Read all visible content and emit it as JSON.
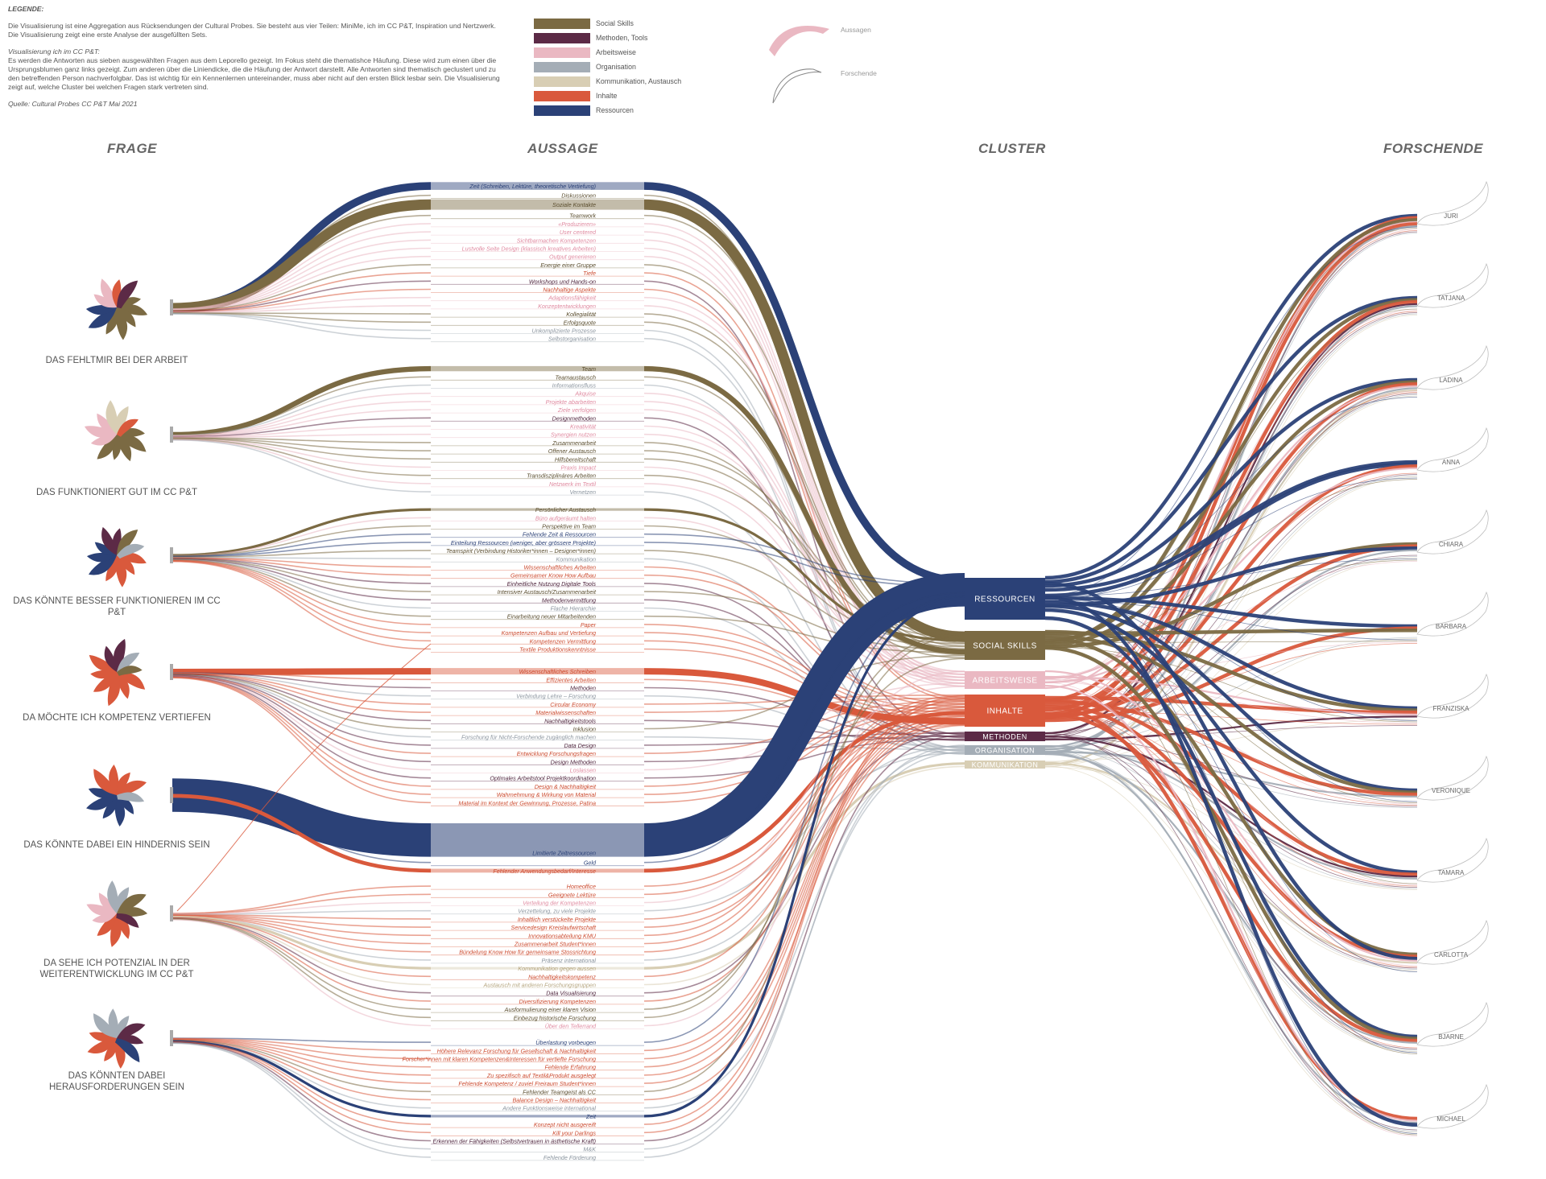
{
  "legend": {
    "title": "LEGENDE:",
    "para1": "Die Visualisierung ist eine Aggregation aus Rücksendungen der Cultural Probes. Sie besteht aus vier Teilen: MiniMe, ich im CC P&T, Inspiration und Nertzwerk. Die Visualisierung zeigt eine erste Analyse der ausgefüllten Sets.",
    "subtitle": "Visualisierung ich im CC P&T:",
    "para2": "Es werden die Antworten aus sieben ausgewählten Fragen aus dem Leporello gezeigt. Im Fokus steht die thematishce Häufung. Diese wird zum einen über die Ursprungsblumen ganz links gezeigt. Zum anderen über die Liniendicke, die die Häufung der Antwort darstellt. Alle Antworten sind thematisch geclustert und zu den betreffenden Person nachverfolgbar. Das ist wichtig für ein Kennenlernen untereinander, muss aber nicht auf den ersten Blick lesbar sein. Die Visualisierung zeigt auf, welche Cluster bei welchen Fragen stark vertreten sind.",
    "source": "Quelle: Cultural Probes CC P&T Mai 2021"
  },
  "colors": {
    "Social Skills": "#7b6a43",
    "Methoden, Tools": "#5c2a46",
    "Arbeitsweise": "#eab8c2",
    "Organisation": "#a4adb6",
    "Kommunikation, Austausch": "#d8ceb4",
    "Inhalte": "#d9593c",
    "Ressourcen": "#2b4177"
  },
  "cluster_legend": [
    "Social Skills",
    "Methoden, Tools",
    "Arbeitsweise",
    "Organisation",
    "Kommunikation, Austausch",
    "Inhalte",
    "Ressourcen"
  ],
  "symbol_legend": {
    "aussagen": "Aussagen",
    "forschende": "Forschende"
  },
  "headers": {
    "frage": "FRAGE",
    "aussage": "AUSSAGE",
    "cluster": "CLUSTER",
    "forschende": "FORSCHENDE"
  },
  "questions": [
    {
      "label": "DAS FEHLTMIR BEI DER ARBEIT",
      "mix": [
        [
          "Social Skills",
          5
        ],
        [
          "Ressourcen",
          2
        ],
        [
          "Arbeitsweise",
          2
        ],
        [
          "Inhalte",
          1
        ],
        [
          "Methoden, Tools",
          1
        ]
      ]
    },
    {
      "label": "DAS FUNKTIONIERT GUT IM CC P&T",
      "mix": [
        [
          "Social Skills",
          5
        ],
        [
          "Arbeitsweise",
          3
        ],
        [
          "Kommunikation, Austausch",
          2
        ],
        [
          "Inhalte",
          1
        ]
      ]
    },
    {
      "label": "DAS KÖNNTE BESSER FUNKTIONIEREN IM CC P&T",
      "mix": [
        [
          "Inhalte",
          4
        ],
        [
          "Ressourcen",
          3
        ],
        [
          "Methoden, Tools",
          2
        ],
        [
          "Social Skills",
          1
        ],
        [
          "Organisation",
          1
        ]
      ]
    },
    {
      "label": "DA MÖCHTE ICH KOMPETENZ VERTIEFEN",
      "mix": [
        [
          "Inhalte",
          6
        ],
        [
          "Methoden, Tools",
          2
        ],
        [
          "Organisation",
          1
        ],
        [
          "Social Skills",
          1
        ]
      ]
    },
    {
      "label": "DAS KÖNNTE DABEI EIN HINDERNIS SEIN",
      "mix": [
        [
          "Ressourcen",
          5
        ],
        [
          "Inhalte",
          4
        ],
        [
          "Organisation",
          1
        ]
      ]
    },
    {
      "label": "DA SEHE ICH POTENZIAL IN DER WEITERENTWICKLUNG IM CC P&T",
      "mix": [
        [
          "Inhalte",
          3
        ],
        [
          "Arbeitsweise",
          3
        ],
        [
          "Organisation",
          2
        ],
        [
          "Social Skills",
          2
        ],
        [
          "Methoden, Tools",
          1
        ]
      ]
    },
    {
      "label": "DAS KÖNNTEN DABEI HERAUSFORDERUNGEN SEIN",
      "mix": [
        [
          "Inhalte",
          4
        ],
        [
          "Organisation",
          3
        ],
        [
          "Methoden, Tools",
          2
        ],
        [
          "Ressourcen",
          1
        ]
      ]
    }
  ],
  "clusters": [
    {
      "label": "RESSOURCEN",
      "key": "Ressourcen"
    },
    {
      "label": "SOCIAL SKILLS",
      "key": "Social Skills"
    },
    {
      "label": "ARBEITSWEISE",
      "key": "Arbeitsweise"
    },
    {
      "label": "INHALTE",
      "key": "Inhalte"
    },
    {
      "label": "METHODEN",
      "key": "Methoden, Tools"
    },
    {
      "label": "ORGANISATION",
      "key": "Organisation"
    },
    {
      "label": "KOMMUNIKATION",
      "key": "Kommunikation, Austausch"
    }
  ],
  "researchers": [
    "JURI",
    "TATJANA",
    "LADINA",
    "ANNA",
    "CHIARA",
    "BARBARA",
    "FRANZISKA",
    "VERONIQUE",
    "TAMARA",
    "CARLOTTA",
    "BJARNE",
    "MICHAEL"
  ],
  "statements": [
    {
      "t": "Zeit (Schreiben, Lektüre, theoretische Vertiefung)",
      "c": "Ressourcen",
      "w": 6,
      "q": 0
    },
    {
      "t": "Diskussionen",
      "c": "Social Skills",
      "w": 1,
      "q": 0
    },
    {
      "t": "Soziale Kontakte",
      "c": "Social Skills",
      "w": 8,
      "q": 0
    },
    {
      "t": "Teamwork",
      "c": "Social Skills",
      "w": 1,
      "q": 0
    },
    {
      "t": "«Produzieren»",
      "c": "Arbeitsweise",
      "w": 1,
      "q": 0
    },
    {
      "t": "User centered",
      "c": "Arbeitsweise",
      "w": 1,
      "q": 0
    },
    {
      "t": "Sichtbarmachen Kompetenzen",
      "c": "Arbeitsweise",
      "w": 1,
      "q": 0
    },
    {
      "t": "Lustvolle Seite Design (klassisch kreatives Arbeiten)",
      "c": "Arbeitsweise",
      "w": 1,
      "q": 0
    },
    {
      "t": "Output generieren",
      "c": "Arbeitsweise",
      "w": 1,
      "q": 0
    },
    {
      "t": "Energie einer Gruppe",
      "c": "Social Skills",
      "w": 1,
      "q": 0
    },
    {
      "t": "Tiefe",
      "c": "Inhalte",
      "w": 1,
      "q": 0
    },
    {
      "t": "Workshops und Hands-on",
      "c": "Methoden, Tools",
      "w": 1,
      "q": 0
    },
    {
      "t": "Nachhaltige Aspekte",
      "c": "Inhalte",
      "w": 1,
      "q": 0
    },
    {
      "t": "Adaptionsfähigkeit",
      "c": "Arbeitsweise",
      "w": 1,
      "q": 0
    },
    {
      "t": "Konzeptentwicklungen",
      "c": "Arbeitsweise",
      "w": 1,
      "q": 0
    },
    {
      "t": "Kollegialität",
      "c": "Social Skills",
      "w": 1,
      "q": 0
    },
    {
      "t": "Erfolgsquote",
      "c": "Social Skills",
      "w": 1,
      "q": 0
    },
    {
      "t": "Unkomplizierte Prozesse",
      "c": "Organisation",
      "w": 1,
      "q": 0
    },
    {
      "t": "Selbstorganisation",
      "c": "Organisation",
      "w": 1,
      "q": 0
    },
    {
      "t": "Team",
      "c": "Social Skills",
      "w": 4,
      "q": 1
    },
    {
      "t": "Teamaustausch",
      "c": "Social Skills",
      "w": 1,
      "q": 1
    },
    {
      "t": "Informationsfluss",
      "c": "Organisation",
      "w": 1,
      "q": 1
    },
    {
      "t": "Akquise",
      "c": "Arbeitsweise",
      "w": 1,
      "q": 1
    },
    {
      "t": "Projekte abarbeiten",
      "c": "Arbeitsweise",
      "w": 1,
      "q": 1
    },
    {
      "t": "Ziele verfolgen",
      "c": "Arbeitsweise",
      "w": 1,
      "q": 1
    },
    {
      "t": "Designmethoden",
      "c": "Methoden, Tools",
      "w": 1,
      "q": 1
    },
    {
      "t": "Kreativität",
      "c": "Arbeitsweise",
      "w": 1,
      "q": 1
    },
    {
      "t": "Synergien nutzen",
      "c": "Arbeitsweise",
      "w": 1,
      "q": 1
    },
    {
      "t": "Zusammenarbeit",
      "c": "Social Skills",
      "w": 1,
      "q": 1
    },
    {
      "t": "Offener Austausch",
      "c": "Social Skills",
      "w": 1,
      "q": 1
    },
    {
      "t": "Hilfsbereitschaft",
      "c": "Social Skills",
      "w": 1,
      "q": 1
    },
    {
      "t": "Praxis Impact",
      "c": "Arbeitsweise",
      "w": 1,
      "q": 1
    },
    {
      "t": "Transdisziplinäres Arbeiten",
      "c": "Social Skills",
      "w": 1,
      "q": 1
    },
    {
      "t": "Netzwerk im Textil",
      "c": "Arbeitsweise",
      "w": 1,
      "q": 1
    },
    {
      "t": "Vernetzen",
      "c": "Organisation",
      "w": 1,
      "q": 1
    },
    {
      "t": "Persönlicher Austausch",
      "c": "Social Skills",
      "w": 2,
      "q": 2
    },
    {
      "t": "Büro aufgeräumt halten",
      "c": "Arbeitsweise",
      "w": 1,
      "q": 2
    },
    {
      "t": "Perspektive im Team",
      "c": "Social Skills",
      "w": 1,
      "q": 2
    },
    {
      "t": "Fehlende Zeit & Ressourcen",
      "c": "Ressourcen",
      "w": 1,
      "q": 2
    },
    {
      "t": "Einteilung Ressourcen (weniger, aber grössere Projekte)",
      "c": "Ressourcen",
      "w": 1,
      "q": 2
    },
    {
      "t": "Teamspirit (Verbindung Historiker*innen – Designer*innen)",
      "c": "Social Skills",
      "w": 1,
      "q": 2
    },
    {
      "t": "Kommunikation",
      "c": "Organisation",
      "w": 1,
      "q": 2
    },
    {
      "t": "Wissenschaftliches Arbeiten",
      "c": "Inhalte",
      "w": 1,
      "q": 2
    },
    {
      "t": "Gemeinsamer Know How Aufbau",
      "c": "Inhalte",
      "w": 1,
      "q": 2
    },
    {
      "t": "Einheitliche Nutzung Digitale Tools",
      "c": "Methoden, Tools",
      "w": 1,
      "q": 2
    },
    {
      "t": "Intensiver Austausch/Zusammenarbeit",
      "c": "Social Skills",
      "w": 1,
      "q": 2
    },
    {
      "t": "Methodenvermittlung",
      "c": "Methoden, Tools",
      "w": 1,
      "q": 2
    },
    {
      "t": "Flache Hierarchie",
      "c": "Organisation",
      "w": 1,
      "q": 2
    },
    {
      "t": "Einarbeitung neuer Mitarbeitenden",
      "c": "Social Skills",
      "w": 1,
      "q": 2
    },
    {
      "t": "Paper",
      "c": "Inhalte",
      "w": 1,
      "q": 2
    },
    {
      "t": "Kompetenzen Aufbau und Vertiefung",
      "c": "Inhalte",
      "w": 1,
      "q": 2
    },
    {
      "t": "Kompetenzen Vermittlung",
      "c": "Inhalte",
      "w": 1,
      "q": 2
    },
    {
      "t": "Textile Produktionskenntnisse",
      "c": "Inhalte",
      "w": 1,
      "q": 2
    },
    {
      "t": "Wissenschaftliches Schreiben",
      "c": "Inhalte",
      "w": 5,
      "q": 3
    },
    {
      "t": "Effizientes Arbeiten",
      "c": "Inhalte",
      "w": 1,
      "q": 3
    },
    {
      "t": "Methoden",
      "c": "Methoden, Tools",
      "w": 1,
      "q": 3
    },
    {
      "t": "Verbindung Lehre – Forschung",
      "c": "Organisation",
      "w": 1,
      "q": 3
    },
    {
      "t": "Circular Economy",
      "c": "Inhalte",
      "w": 1,
      "q": 3
    },
    {
      "t": "Materialwissenschaften",
      "c": "Inhalte",
      "w": 1,
      "q": 3
    },
    {
      "t": "Nachhaltigkeitstools",
      "c": "Methoden, Tools",
      "w": 1,
      "q": 3
    },
    {
      "t": "Inklusion",
      "c": "Social Skills",
      "w": 1,
      "q": 3
    },
    {
      "t": "Forschung für Nicht-Forschende zugänglich machen",
      "c": "Organisation",
      "w": 1,
      "q": 3
    },
    {
      "t": "Data Design",
      "c": "Methoden, Tools",
      "w": 1,
      "q": 3
    },
    {
      "t": "Entwicklung Forschungsfragen",
      "c": "Inhalte",
      "w": 1,
      "q": 3
    },
    {
      "t": "Design Methoden",
      "c": "Methoden, Tools",
      "w": 1,
      "q": 3
    },
    {
      "t": "Loslassen",
      "c": "Arbeitsweise",
      "w": 1,
      "q": 3
    },
    {
      "t": "Optimales Arbeitstool Projektkoordination",
      "c": "Methoden, Tools",
      "w": 1,
      "q": 3
    },
    {
      "t": "Design & Nachhaltigkeit",
      "c": "Inhalte",
      "w": 1,
      "q": 3
    },
    {
      "t": "Wahrnehmung & Wirkung von Material",
      "c": "Inhalte",
      "w": 1,
      "q": 3
    },
    {
      "t": "Material im Kontext der Gewinnung, Prozesse, Patina",
      "c": "Inhalte",
      "w": 1,
      "q": 3
    },
    {
      "t": "Limitierte Zeitressourcen",
      "c": "Ressourcen",
      "w": 26,
      "q": 4
    },
    {
      "t": "Geld",
      "c": "Ressourcen",
      "w": 1,
      "q": 4
    },
    {
      "t": "Fehlender Anwendungsbedarf/Interesse",
      "c": "Inhalte",
      "w": 3,
      "q": 4
    },
    {
      "t": "Homeoffice",
      "c": "Inhalte",
      "w": 1,
      "q": 5
    },
    {
      "t": "Geeignete Lektüre",
      "c": "Inhalte",
      "w": 1,
      "q": 5
    },
    {
      "t": "Verteilung der Kompetenzen",
      "c": "Arbeitsweise",
      "w": 1,
      "q": 5
    },
    {
      "t": "Verzettelung, zu viele Projekte",
      "c": "Organisation",
      "w": 1,
      "q": 5
    },
    {
      "t": "Inhaltlich verstückelte Projekte",
      "c": "Inhalte",
      "w": 1,
      "q": 5
    },
    {
      "t": "Servicedesign Kreislaufwirtschaft",
      "c": "Inhalte",
      "w": 1,
      "q": 5
    },
    {
      "t": "Innovationsabteilung KMU",
      "c": "Inhalte",
      "w": 1,
      "q": 5
    },
    {
      "t": "Zusammenarbeit Student*innen",
      "c": "Inhalte",
      "w": 1,
      "q": 5
    },
    {
      "t": "Bündelung Know How für gemeinsame Stossrichtung",
      "c": "Inhalte",
      "w": 1,
      "q": 5
    },
    {
      "t": "Präsenz international",
      "c": "Organisation",
      "w": 1,
      "q": 5
    },
    {
      "t": "Kommunikation gegen aussen",
      "c": "Kommunikation, Austausch",
      "w": 2,
      "q": 5
    },
    {
      "t": "Nachhaltigkeitskompetenz",
      "c": "Inhalte",
      "w": 1,
      "q": 5
    },
    {
      "t": "Austausch mit anderen Forschungsgruppen",
      "c": "Kommunikation, Austausch",
      "w": 1,
      "q": 5
    },
    {
      "t": "Data Visualisierung",
      "c": "Methoden, Tools",
      "w": 1,
      "q": 5
    },
    {
      "t": "Diversifizierung Kompetenzen",
      "c": "Inhalte",
      "w": 1,
      "q": 5
    },
    {
      "t": "Ausformulierung einer klaren Vision",
      "c": "Social Skills",
      "w": 1,
      "q": 5
    },
    {
      "t": "Einbezug historische Forschung",
      "c": "Social Skills",
      "w": 1,
      "q": 5
    },
    {
      "t": "Über den Tellerrand",
      "c": "Arbeitsweise",
      "w": 1,
      "q": 5
    },
    {
      "t": "Überlastung vorbeugen",
      "c": "Ressourcen",
      "w": 1,
      "q": 6
    },
    {
      "t": "Höhere Relevanz Forschung für Gesellschaft & Nachhaltigkeit",
      "c": "Inhalte",
      "w": 1,
      "q": 6
    },
    {
      "t": "Forscher*innen mit klaren Kompetenzen&Interessen für vertiefte Forschung",
      "c": "Inhalte",
      "w": 1,
      "q": 6
    },
    {
      "t": "Fehlende Erfahrung",
      "c": "Inhalte",
      "w": 1,
      "q": 6
    },
    {
      "t": "Zu spezifisch auf Textil&Produkt ausgelegt",
      "c": "Inhalte",
      "w": 1,
      "q": 6
    },
    {
      "t": "Fehlende Kompetenz / zuviel Freiraum Student*innen",
      "c": "Inhalte",
      "w": 1,
      "q": 6
    },
    {
      "t": "Fehlender Teamgeist als CC",
      "c": "Social Skills",
      "w": 1,
      "q": 6
    },
    {
      "t": "Balance Design – Nachhaltigkeit",
      "c": "Inhalte",
      "w": 1,
      "q": 6
    },
    {
      "t": "Andere Funktionsweise international",
      "c": "Organisation",
      "w": 1,
      "q": 6
    },
    {
      "t": "Zeit",
      "c": "Ressourcen",
      "w": 2,
      "q": 6
    },
    {
      "t": "Konzept nicht ausgereift",
      "c": "Inhalte",
      "w": 1,
      "q": 6
    },
    {
      "t": "Kill your Darlings",
      "c": "Inhalte",
      "w": 1,
      "q": 6
    },
    {
      "t": "Erkennen der Fähigkeiten (Selbstvertrauen in ästhetische Kraft)",
      "c": "Methoden, Tools",
      "w": 1,
      "q": 6
    },
    {
      "t": "M&K",
      "c": "Organisation",
      "w": 1,
      "q": 6
    },
    {
      "t": "Fehlende Förderung",
      "c": "Organisation",
      "w": 1,
      "q": 6
    }
  ]
}
